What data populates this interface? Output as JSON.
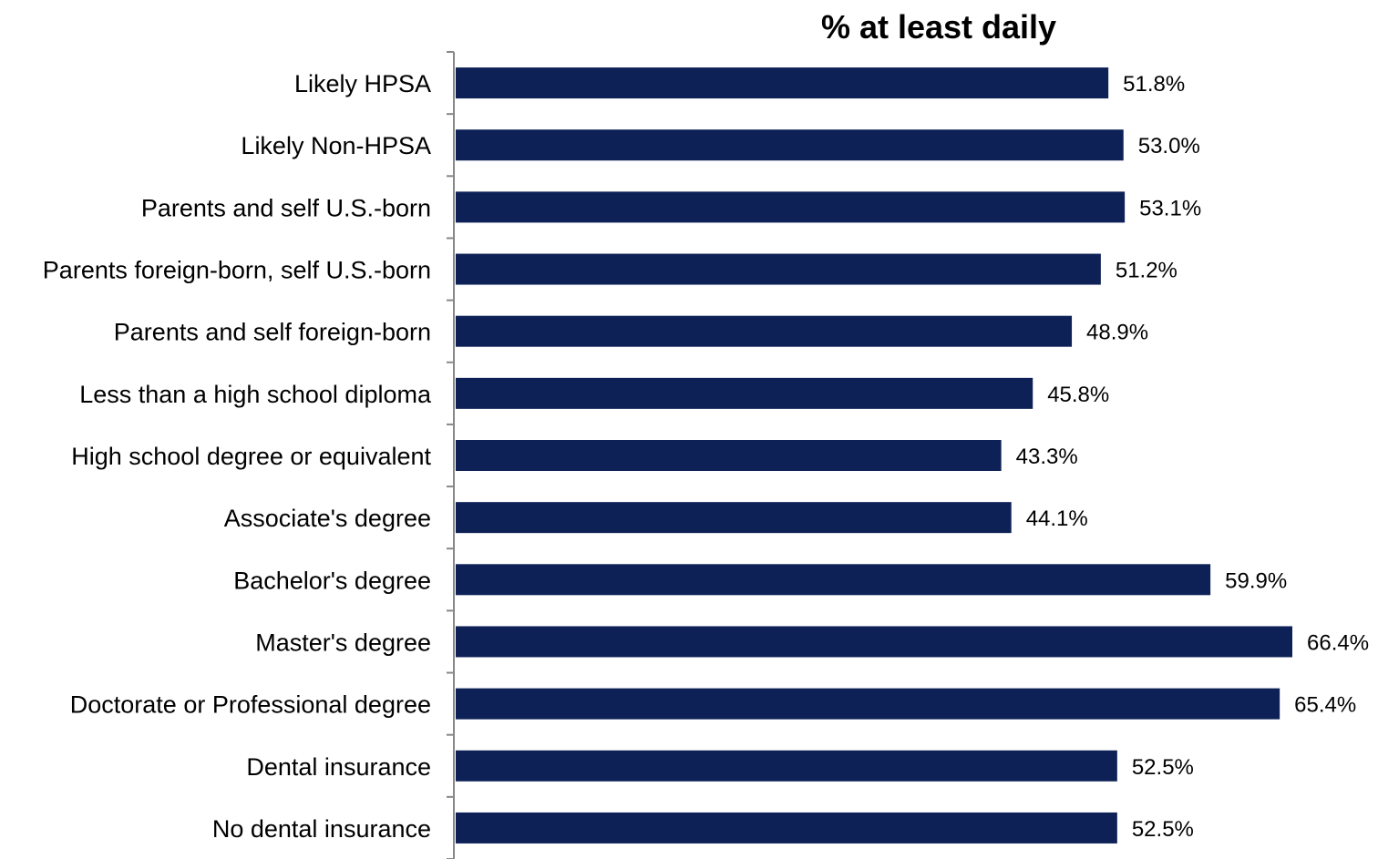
{
  "chart_data": {
    "type": "bar",
    "orientation": "horizontal",
    "title": "% at least daily",
    "xlabel": "",
    "ylabel": "",
    "categories": [
      "Likely HPSA",
      "Likely Non-HPSA",
      "Parents and self U.S.-born",
      "Parents foreign-born, self U.S.-born",
      "Parents and self foreign-born",
      "Less than a high school diploma",
      "High school degree or equivalent",
      "Associate's degree",
      "Bachelor's degree",
      "Master's degree",
      "Doctorate or Professional degree",
      "Dental insurance",
      "No dental insurance"
    ],
    "values": [
      51.8,
      53.0,
      53.1,
      51.2,
      48.9,
      45.8,
      43.3,
      44.1,
      59.9,
      66.4,
      65.4,
      52.5,
      52.5
    ],
    "value_labels": [
      "51.8%",
      "53.0%",
      "53.1%",
      "51.2%",
      "48.9%",
      "45.8%",
      "43.3%",
      "44.1%",
      "59.9%",
      "66.4%",
      "65.4%",
      "52.5%",
      "52.5%"
    ],
    "xlim": [
      0,
      66.4
    ],
    "bar_color": "#0d2157",
    "axis_color": "#888888",
    "grid": false,
    "legend": "none"
  }
}
